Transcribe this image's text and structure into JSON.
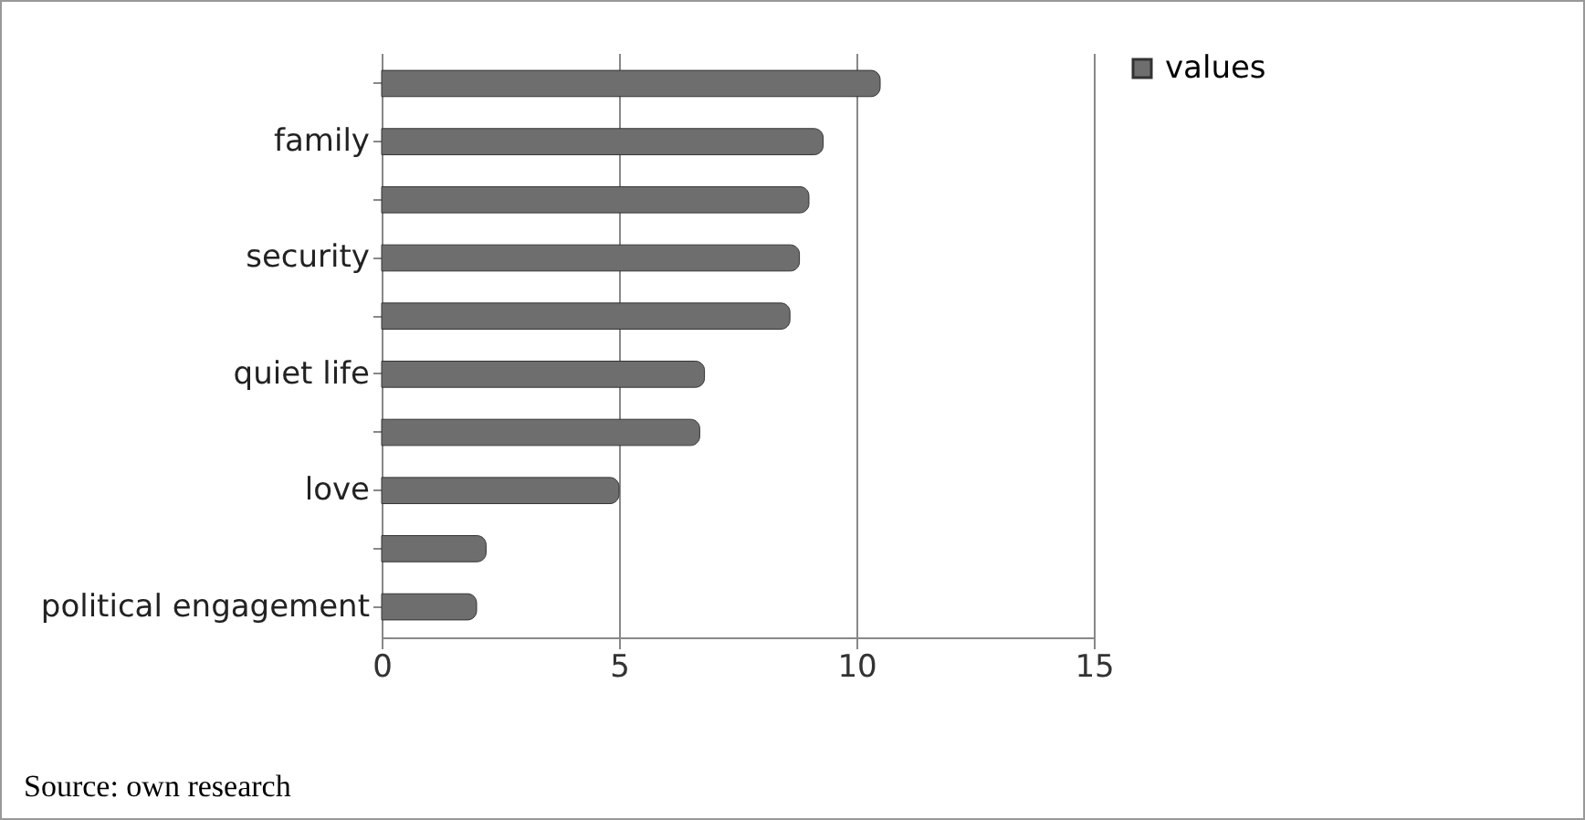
{
  "chart_data": {
    "type": "bar",
    "orientation": "horizontal",
    "categories": [
      null,
      "family",
      null,
      "security",
      null,
      "quiet life",
      null,
      "love",
      null,
      "political engagement"
    ],
    "series": [
      {
        "name": "values",
        "color": "#6e6e6e",
        "values": [
          10.5,
          9.3,
          9.0,
          8.8,
          8.6,
          6.8,
          6.7,
          5.0,
          2.2,
          2.0
        ]
      }
    ],
    "xlim": [
      0,
      15
    ],
    "xticks": [
      0,
      5,
      10,
      15
    ],
    "grid": "x",
    "legend": "right",
    "annotations": [
      "Source: own research"
    ]
  }
}
